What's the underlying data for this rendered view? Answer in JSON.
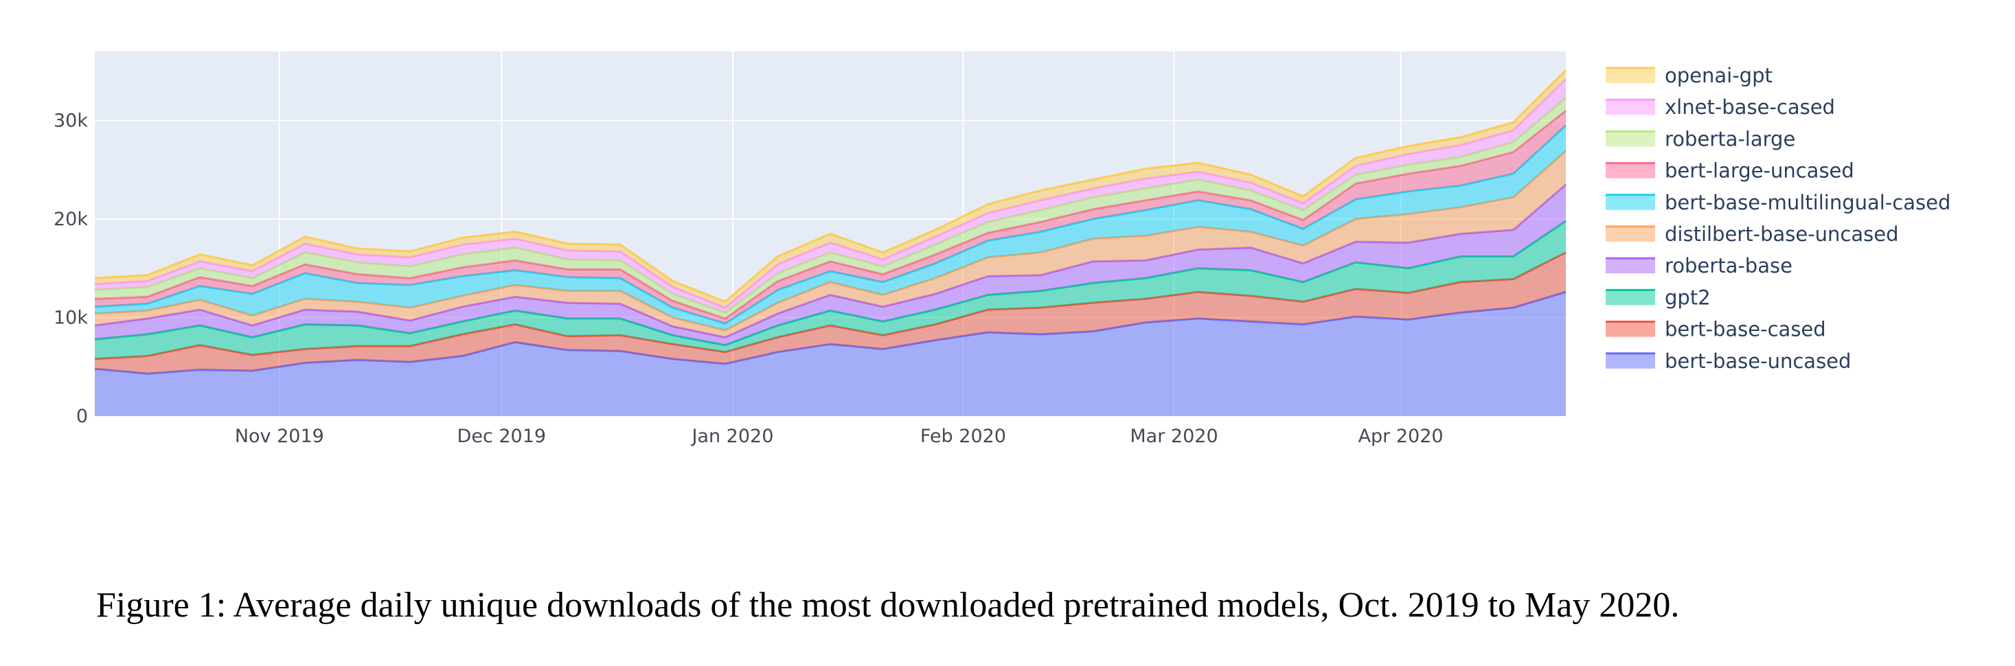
{
  "chart_data": {
    "type": "area",
    "stacked": true,
    "title": "",
    "xlabel": "",
    "ylabel": "",
    "ylim": [
      0,
      37000
    ],
    "y_ticks": [
      {
        "value": 0,
        "label": "0"
      },
      {
        "value": 10000,
        "label": "10k"
      },
      {
        "value": 20000,
        "label": "20k"
      },
      {
        "value": 30000,
        "label": "30k"
      }
    ],
    "x_range_days": [
      0,
      196
    ],
    "x_ticks": [
      {
        "day": 24.6,
        "label": "Nov 2019"
      },
      {
        "day": 54.2,
        "label": "Dec 2019"
      },
      {
        "day": 85.0,
        "label": "Jan 2020"
      },
      {
        "day": 115.7,
        "label": "Feb 2020"
      },
      {
        "day": 143.8,
        "label": "Mar 2020"
      },
      {
        "day": 174.0,
        "label": "Apr 2020"
      }
    ],
    "x_days": [
      0,
      7,
      14,
      21,
      28,
      35,
      42,
      49,
      56,
      63,
      70,
      77,
      84,
      91,
      98,
      105,
      112,
      119,
      126,
      133,
      140,
      147,
      154,
      161,
      168,
      175,
      182,
      189,
      196
    ],
    "legend_position": "right",
    "series": [
      {
        "name": "bert-base-uncased",
        "color": "#636efa",
        "values": [
          4800,
          4300,
          4700,
          4600,
          5400,
          5700,
          5500,
          6100,
          7500,
          6700,
          6600,
          5800,
          5300,
          6500,
          7300,
          6800,
          7700,
          8500,
          8300,
          8600,
          9500,
          9900,
          9600,
          9300,
          10100,
          9800,
          10500,
          11000,
          12600
        ]
      },
      {
        "name": "bert-base-cased",
        "color": "#ef553b",
        "values": [
          1000,
          1800,
          2500,
          1600,
          1400,
          1400,
          1600,
          2200,
          1800,
          1400,
          1600,
          1500,
          1200,
          1500,
          1900,
          1400,
          1600,
          2300,
          2700,
          2900,
          2400,
          2700,
          2600,
          2300,
          2800,
          2700,
          3100,
          2900,
          4000
        ]
      },
      {
        "name": "gpt2",
        "color": "#00cc96",
        "values": [
          2000,
          2200,
          2000,
          1800,
          2500,
          2100,
          1300,
          1300,
          1400,
          1800,
          1700,
          900,
          700,
          1200,
          1500,
          1400,
          1500,
          1500,
          1700,
          2000,
          2100,
          2400,
          2600,
          2000,
          2700,
          2500,
          2600,
          2300,
          3200
        ]
      },
      {
        "name": "roberta-base",
        "color": "#ab63fa",
        "values": [
          1400,
          1600,
          1600,
          1200,
          1500,
          1400,
          1300,
          1500,
          1400,
          1600,
          1500,
          900,
          800,
          1200,
          1600,
          1500,
          1600,
          1900,
          1600,
          2200,
          1800,
          1900,
          2300,
          1900,
          2100,
          2600,
          2300,
          2700,
          3700
        ]
      },
      {
        "name": "distilbert-base-uncased",
        "color": "#ffa15a",
        "values": [
          1200,
          800,
          1000,
          1000,
          1100,
          1000,
          1300,
          1100,
          1200,
          1200,
          1300,
          900,
          700,
          1100,
          1300,
          1200,
          1600,
          1900,
          2300,
          2300,
          2500,
          2300,
          1600,
          1800,
          2300,
          2900,
          2700,
          3300,
          3400
        ]
      },
      {
        "name": "bert-base-multilingual-cased",
        "color": "#19d3f3",
        "values": [
          700,
          700,
          1400,
          2200,
          2600,
          1900,
          2300,
          2000,
          1500,
          1400,
          1300,
          1000,
          700,
          1300,
          1100,
          1300,
          1500,
          1700,
          2100,
          2000,
          2600,
          2700,
          2300,
          1700,
          2000,
          2300,
          2200,
          2400,
          2600
        ]
      },
      {
        "name": "bert-large-uncased",
        "color": "#ff6692",
        "values": [
          800,
          700,
          900,
          800,
          900,
          900,
          700,
          900,
          1000,
          800,
          900,
          700,
          500,
          900,
          1000,
          800,
          900,
          800,
          1000,
          1000,
          1000,
          900,
          900,
          900,
          1600,
          1800,
          2000,
          2200,
          1500
        ]
      },
      {
        "name": "roberta-large",
        "color": "#b6e880",
        "values": [
          900,
          1000,
          900,
          800,
          1200,
          1200,
          1200,
          1300,
          1300,
          1000,
          900,
          700,
          600,
          800,
          900,
          800,
          1000,
          1100,
          1200,
          1200,
          1200,
          1200,
          1000,
          1000,
          900,
          900,
          900,
          1000,
          1300
        ]
      },
      {
        "name": "xlnet-base-cased",
        "color": "#ff97ff",
        "values": [
          600,
          600,
          700,
          700,
          900,
          800,
          900,
          1000,
          900,
          900,
          900,
          700,
          500,
          900,
          1000,
          700,
          800,
          900,
          1000,
          900,
          1000,
          800,
          800,
          700,
          900,
          1100,
          1200,
          1200,
          1900
        ]
      },
      {
        "name": "openai-gpt",
        "color": "#fecb52",
        "values": [
          600,
          600,
          700,
          600,
          700,
          600,
          600,
          700,
          700,
          700,
          700,
          600,
          600,
          800,
          900,
          700,
          700,
          900,
          1000,
          900,
          1000,
          900,
          800,
          700,
          800,
          800,
          800,
          800,
          900
        ]
      }
    ]
  },
  "caption": "Figure 1: Average daily unique downloads of the most downloaded pretrained models, Oct. 2019 to May 2020."
}
